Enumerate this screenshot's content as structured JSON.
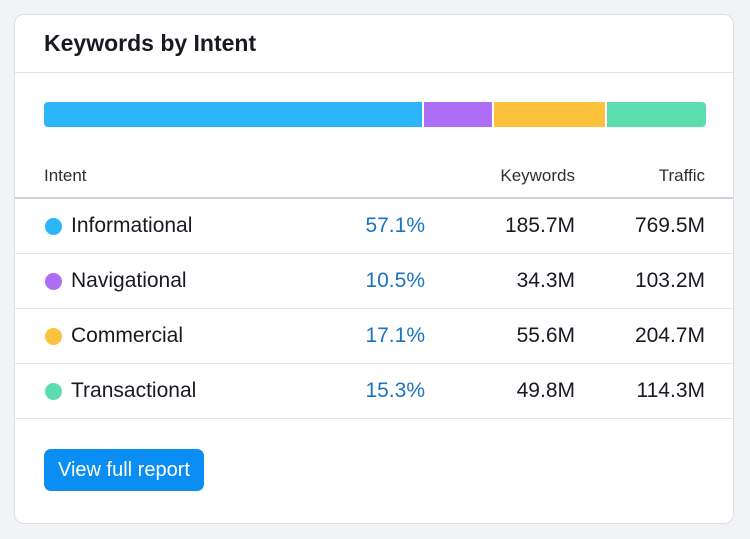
{
  "widget": {
    "title": "Keywords by Intent",
    "columns": {
      "intent": "Intent",
      "keywords": "Keywords",
      "traffic": "Traffic"
    },
    "rows": [
      {
        "intent": "Informational",
        "share": "57.1%",
        "keywords": "185.7M",
        "traffic": "769.5M",
        "color": "#2db5f9"
      },
      {
        "intent": "Navigational",
        "share": "10.5%",
        "keywords": "34.3M",
        "traffic": "103.2M",
        "color": "#ac6ef4"
      },
      {
        "intent": "Commercial",
        "share": "17.1%",
        "keywords": "55.6M",
        "traffic": "204.7M",
        "color": "#fdc23d"
      },
      {
        "intent": "Transactional",
        "share": "15.3%",
        "keywords": "49.8M",
        "traffic": "114.3M",
        "color": "#5bddb0"
      }
    ],
    "distribution_bar": [
      {
        "intent": "Informational",
        "percent": 57.1,
        "color": "#2db5f9"
      },
      {
        "intent": "Navigational",
        "percent": 10.5,
        "color": "#ac6ef4"
      },
      {
        "intent": "Commercial",
        "percent": 17.1,
        "color": "#fdc23d"
      },
      {
        "intent": "Transactional",
        "percent": 15.3,
        "color": "#5bddb0"
      }
    ],
    "cta_label": "View full report",
    "accent_color": "#0b8ef3"
  }
}
